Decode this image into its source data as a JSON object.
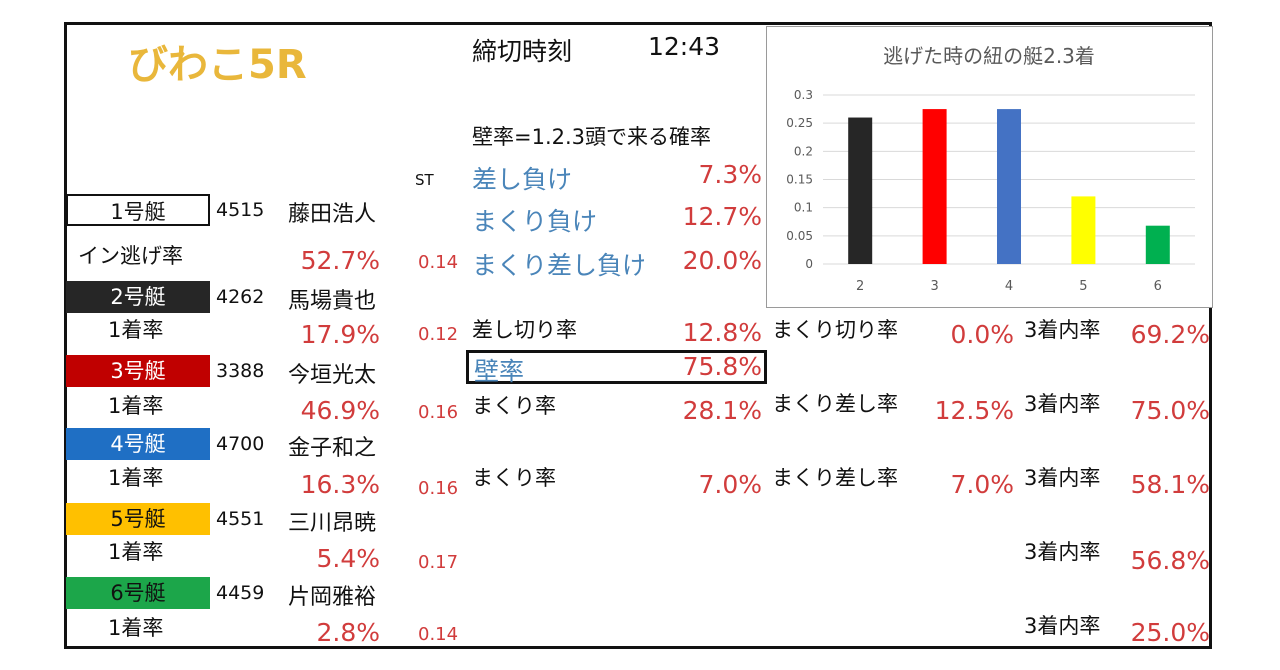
{
  "title": "びわこ5R",
  "deadline": {
    "label": "締切時刻",
    "time": "12:43"
  },
  "wall": {
    "heading": "壁率=1.2.3頭で来る確率",
    "rows": [
      {
        "label": "差し負け",
        "value": "7.3%"
      },
      {
        "label": "まくり負け",
        "value": "12.7%"
      },
      {
        "label": "まくり差し負け",
        "value": "20.0%"
      }
    ]
  },
  "st_header": "ST",
  "boats": [
    {
      "label": "1号艇",
      "color": "#ffffff",
      "text_color": "#111111",
      "reg": "4515",
      "name": "藤田浩人",
      "stat_label": "イン逃げ率",
      "stat": "52.7%",
      "st": "0.14"
    },
    {
      "label": "2号艇",
      "color": "#262626",
      "text_color": "#ffffff",
      "reg": "4262",
      "name": "馬場貴也",
      "stat_label": "1着率",
      "stat": "17.9%",
      "st": "0.12"
    },
    {
      "label": "3号艇",
      "color": "#c00000",
      "text_color": "#ffffff",
      "reg": "3388",
      "name": "今垣光太",
      "stat_label": "1着率",
      "stat": "46.9%",
      "st": "0.16"
    },
    {
      "label": "4号艇",
      "color": "#1f6fc4",
      "text_color": "#ffffff",
      "reg": "4700",
      "name": "金子和之",
      "stat_label": "1着率",
      "stat": "16.3%",
      "st": "0.16"
    },
    {
      "label": "5号艇",
      "color": "#ffc000",
      "text_color": "#111111",
      "reg": "4551",
      "name": "三川昂暁",
      "stat_label": "1着率",
      "stat": "5.4%",
      "st": "0.17"
    },
    {
      "label": "6号艇",
      "color": "#1ca64a",
      "text_color": "#111111",
      "reg": "4459",
      "name": "片岡雅裕",
      "stat_label": "1着率",
      "stat": "2.8%",
      "st": "0.14"
    }
  ],
  "stats": {
    "b2": {
      "label": "差し切り率",
      "value": "12.8%",
      "label2": "まくり切り率",
      "value2": "0.0%",
      "label3": "3着内率",
      "value3": "69.2%"
    },
    "wall_rate": {
      "label": "壁率",
      "value": "75.8%"
    },
    "b3": {
      "label": "まくり率",
      "value": "28.1%",
      "label2": "まくり差し率",
      "value2": "12.5%",
      "label3": "3着内率",
      "value3": "75.0%"
    },
    "b4": {
      "label": "まくり率",
      "value": "7.0%",
      "label2": "まくり差し率",
      "value2": "7.0%",
      "label3": "3着内率",
      "value3": "58.1%"
    },
    "b5": {
      "label3": "3着内率",
      "value3": "56.8%"
    },
    "b6": {
      "label3": "3着内率",
      "value3": "25.0%"
    }
  },
  "chart_data": {
    "type": "bar",
    "title": "逃げた時の紐の艇2.3着",
    "categories": [
      "2",
      "3",
      "4",
      "5",
      "6"
    ],
    "values": [
      0.26,
      0.275,
      0.275,
      0.12,
      0.068
    ],
    "colors": [
      "#262626",
      "#ff0000",
      "#4472c4",
      "#ffff00",
      "#00b050"
    ],
    "yticks": [
      "0",
      "0.05",
      "0.1",
      "0.15",
      "0.2",
      "0.25",
      "0.3"
    ],
    "ylim": [
      0,
      0.3
    ],
    "grid": true
  }
}
